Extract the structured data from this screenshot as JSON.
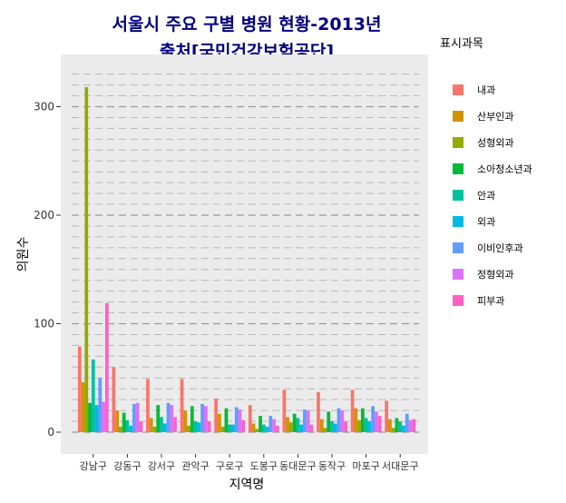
{
  "chart_data": {
    "type": "bar",
    "title": [
      "서울시 주요 구별 병원 현황-2013년",
      "출처[국민건강보험공단]"
    ],
    "xlabel": "지역명",
    "ylabel": "의원수",
    "y_ticks": [
      0,
      100,
      200,
      300
    ],
    "ylim": [
      -5,
      335
    ],
    "grid": true,
    "legend_position": "right",
    "legend_title": "표시과목",
    "categories": [
      "강남구",
      "강동구",
      "강서구",
      "관악구",
      "구로구",
      "도봉구",
      "동대문구",
      "동작구",
      "마포구",
      "서대문구"
    ],
    "series": [
      {
        "name": "내과",
        "color": "#F8766D",
        "values": [
          79,
          60,
          49,
          49,
          31,
          25,
          39,
          37,
          39,
          29
        ]
      },
      {
        "name": "산부인과",
        "color": "#D39200",
        "values": [
          46,
          20,
          13,
          20,
          17,
          8,
          14,
          12,
          22,
          12
        ]
      },
      {
        "name": "성형외과",
        "color": "#93AA00",
        "values": [
          318,
          5,
          5,
          6,
          5,
          3,
          9,
          4,
          11,
          4
        ]
      },
      {
        "name": "소아청소년과",
        "color": "#00BA38",
        "values": [
          27,
          18,
          25,
          24,
          22,
          15,
          17,
          19,
          22,
          13
        ]
      },
      {
        "name": "안과",
        "color": "#00C19F",
        "values": [
          67,
          11,
          14,
          10,
          7,
          7,
          13,
          10,
          13,
          10
        ]
      },
      {
        "name": "외과",
        "color": "#00B9E3",
        "values": [
          25,
          6,
          8,
          9,
          7,
          5,
          7,
          8,
          10,
          6
        ]
      },
      {
        "name": "이비인후과",
        "color": "#619CFF",
        "values": [
          50,
          26,
          27,
          26,
          23,
          15,
          21,
          22,
          24,
          17
        ]
      },
      {
        "name": "정형외과",
        "color": "#DB72FB",
        "values": [
          28,
          27,
          25,
          24,
          21,
          12,
          20,
          20,
          19,
          11
        ]
      },
      {
        "name": "피부과",
        "color": "#FF61C3",
        "values": [
          119,
          10,
          14,
          10,
          11,
          6,
          7,
          10,
          15,
          12
        ]
      }
    ]
  }
}
